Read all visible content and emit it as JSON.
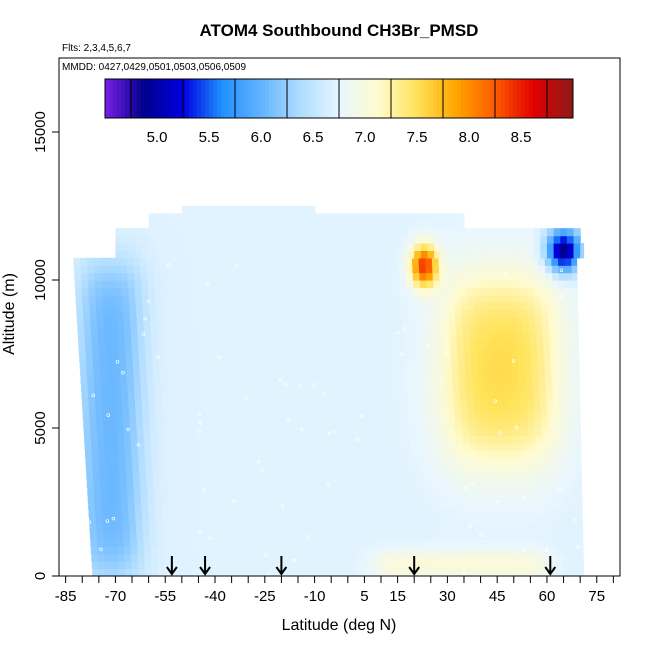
{
  "chart_data": {
    "type": "heatmap",
    "title": "ATOM4 Southbound CH3Br_PMSD",
    "subtitle_flights": "Flts: 2,3,4,5,6,7",
    "subtitle_dates": "MMDD: 0427,0429,0501,0503,0506,0509",
    "xlabel": "Latitude (deg N)",
    "ylabel": "Altitude (m)",
    "xlim": [
      -87,
      82
    ],
    "ylim": [
      0,
      17500
    ],
    "x_ticks": [
      -85,
      -70,
      -55,
      -40,
      -25,
      -10,
      5,
      15,
      30,
      45,
      60,
      75
    ],
    "x_minor_ticks": [
      -80,
      -75,
      -65,
      -60,
      -50,
      -45,
      -35,
      -30,
      -20,
      -15,
      -5,
      0,
      10,
      20,
      25,
      35,
      40,
      50,
      55,
      65,
      70,
      80
    ],
    "y_ticks": [
      0,
      5000,
      10000,
      15000
    ],
    "colorbar": {
      "min": 4.5,
      "max": 9.0,
      "tick_values": [
        5.0,
        5.5,
        6.0,
        6.5,
        7.0,
        7.5,
        8.0,
        8.5
      ],
      "tick_labels": [
        "5.0",
        "5.5",
        "6.0",
        "6.5",
        "7.0",
        "7.5",
        "8.0",
        "8.5"
      ],
      "colors": [
        "#7a1fe6",
        "#00008b",
        "#0000e0",
        "#1e90ff",
        "#62b3ff",
        "#aedcff",
        "#e8f6ff",
        "#fffbd0",
        "#ffe35a",
        "#ffa500",
        "#ff5a00",
        "#e00000",
        "#8b1a1a"
      ]
    },
    "arrow_latitudes": [
      -53,
      -43,
      -20,
      20,
      61
    ],
    "field_summary": {
      "background_value": 6.7,
      "southern_low_region": {
        "lat_range": [
          -80,
          -63
        ],
        "alt_range": [
          0,
          10500
        ],
        "value": 6.0
      },
      "northern_high_region": {
        "lat_range": [
          30,
          62
        ],
        "alt_range": [
          4000,
          10000
        ],
        "value": 7.6
      },
      "upper_peak": {
        "lat": 23,
        "alt": 10500,
        "value": 8.4
      },
      "far_north_low": {
        "lat": 65,
        "alt": 11000,
        "value": 4.8
      },
      "surface_north_band": {
        "lat_range": [
          8,
          60
        ],
        "alt_range": [
          0,
          800
        ],
        "value": 7.2
      }
    }
  }
}
